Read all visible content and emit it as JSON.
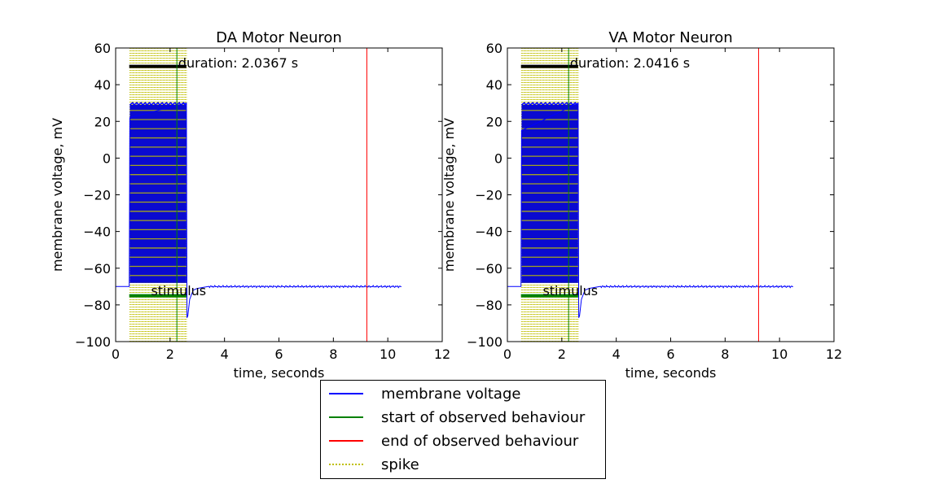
{
  "chart_data": [
    {
      "type": "line",
      "title": "DA Motor Neuron",
      "xlabel": "time, seconds",
      "ylabel": "membrane voltage, mV",
      "xlim": [
        0,
        12
      ],
      "ylim": [
        -100,
        60
      ],
      "xticks": [
        "0",
        "2",
        "4",
        "6",
        "8",
        "10",
        "12"
      ],
      "yticks": [
        "60",
        "40",
        "20",
        "0",
        "−20",
        "−40",
        "−60",
        "−80",
        "−100"
      ],
      "grid": false,
      "series": [
        {
          "name": "membrane voltage",
          "color": "#0000ff",
          "style": "solid",
          "x": [
            0,
            0.5,
            0.52,
            2.6,
            2.62,
            2.65,
            2.72,
            2.85,
            3.0,
            3.4,
            10.5
          ],
          "y": [
            -70,
            -70,
            22,
            30,
            -87,
            -86,
            -77,
            -72,
            -71,
            -70,
            -70
          ],
          "burst": {
            "x_start": 0.52,
            "x_end": 2.6,
            "y_low": -68,
            "y_high": 29
          }
        },
        {
          "name": "start of observed behaviour",
          "color": "#008000",
          "style": "solid",
          "x": [
            2.25
          ],
          "vertical": true
        },
        {
          "name": "end of observed behaviour",
          "color": "#ff0000",
          "style": "solid",
          "x": [
            9.23
          ],
          "vertical": true
        },
        {
          "name": "spike",
          "color": "#bfbf00",
          "style": "dotted",
          "x_range": [
            0.52,
            2.6
          ]
        }
      ],
      "bars": [
        {
          "y": 50,
          "x_start": 0.5,
          "x_end": 2.6,
          "color": "#000000"
        },
        {
          "y": -75,
          "x_start": 0.5,
          "x_end": 2.6,
          "color": "#008000"
        }
      ],
      "annotations": [
        {
          "text": "duration: 2.0367 s",
          "x": 2.3,
          "y": 52
        },
        {
          "text": "stimulus",
          "x": 1.3,
          "y": -72
        }
      ]
    },
    {
      "type": "line",
      "title": "VA Motor Neuron",
      "xlabel": "time, seconds",
      "ylabel": "membrane voltage, mV",
      "xlim": [
        0,
        12
      ],
      "ylim": [
        -100,
        60
      ],
      "xticks": [
        "0",
        "2",
        "4",
        "6",
        "8",
        "10",
        "12"
      ],
      "yticks": [
        "60",
        "40",
        "20",
        "0",
        "−20",
        "−40",
        "−60",
        "−80",
        "−100"
      ],
      "grid": false,
      "series": [
        {
          "name": "membrane voltage",
          "color": "#0000ff",
          "style": "solid",
          "x": [
            0,
            0.5,
            0.52,
            2.6,
            2.62,
            2.65,
            2.72,
            2.85,
            3.0,
            3.4,
            10.5
          ],
          "y": [
            -70,
            -70,
            15,
            30,
            -87,
            -86,
            -77,
            -72,
            -71,
            -70,
            -70
          ],
          "burst": {
            "x_start": 0.52,
            "x_end": 2.6,
            "y_low": -68,
            "y_high": 29
          }
        },
        {
          "name": "start of observed behaviour",
          "color": "#008000",
          "style": "solid",
          "x": [
            2.25
          ],
          "vertical": true
        },
        {
          "name": "end of observed behaviour",
          "color": "#ff0000",
          "style": "solid",
          "x": [
            9.23
          ],
          "vertical": true
        },
        {
          "name": "spike",
          "color": "#bfbf00",
          "style": "dotted",
          "x_range": [
            0.52,
            2.6
          ]
        }
      ],
      "bars": [
        {
          "y": 50,
          "x_start": 0.5,
          "x_end": 2.6,
          "color": "#000000"
        },
        {
          "y": -75,
          "x_start": 0.5,
          "x_end": 2.6,
          "color": "#008000"
        }
      ],
      "annotations": [
        {
          "text": "duration: 2.0416 s",
          "x": 2.3,
          "y": 52
        },
        {
          "text": "stimulus",
          "x": 1.3,
          "y": -72
        }
      ]
    }
  ],
  "legend": {
    "placement": "bottom-center",
    "items": [
      {
        "label": "membrane voltage",
        "color": "#0000ff",
        "style": "solid"
      },
      {
        "label": "start of observed behaviour",
        "color": "#008000",
        "style": "solid"
      },
      {
        "label": "end of observed behaviour",
        "color": "#ff0000",
        "style": "solid"
      },
      {
        "label": "spike",
        "color": "#bfbf00",
        "style": "dotted"
      }
    ]
  }
}
